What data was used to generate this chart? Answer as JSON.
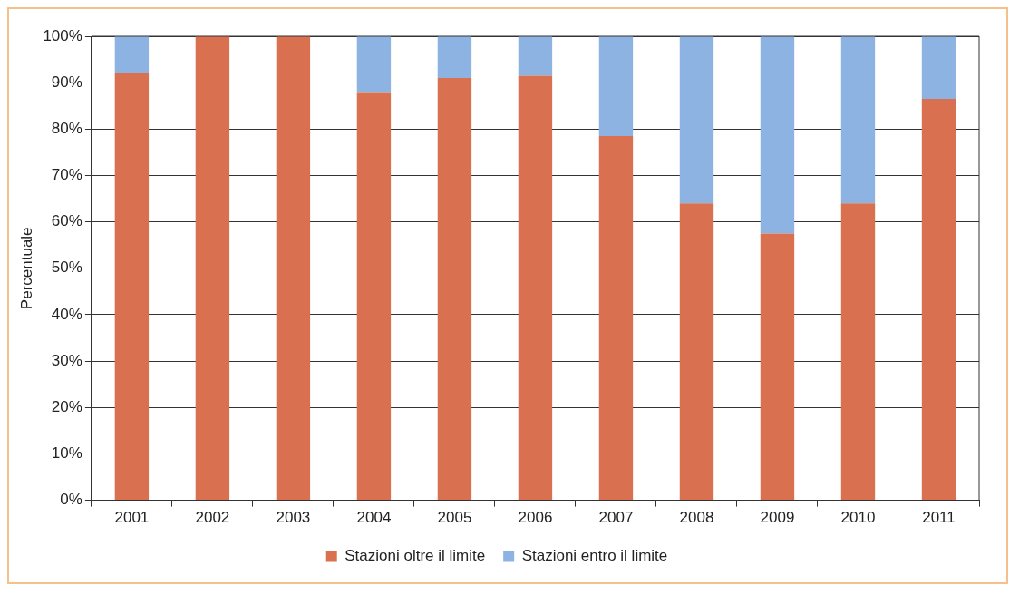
{
  "chart_data": {
    "type": "bar",
    "ylabel": "Percentuale",
    "categories": [
      "2001",
      "2002",
      "2003",
      "2004",
      "2005",
      "2006",
      "2007",
      "2008",
      "2009",
      "2010",
      "2011"
    ],
    "stacked": true,
    "series": [
      {
        "name": "Stazioni oltre il limite",
        "color": "#d9704f",
        "values": [
          92,
          100,
          100,
          88,
          91,
          91.5,
          78.5,
          64,
          57.5,
          64,
          86.5
        ]
      },
      {
        "name": "Stazioni entro il limite",
        "color": "#8db3e2",
        "values": [
          8,
          0,
          0,
          12,
          9,
          8.5,
          21.5,
          36,
          42.5,
          36,
          13.5
        ]
      }
    ],
    "ylim": [
      0,
      100
    ],
    "yticks": [
      {
        "value": 0,
        "label": "0%"
      },
      {
        "value": 10,
        "label": "10%"
      },
      {
        "value": 20,
        "label": "20%"
      },
      {
        "value": 30,
        "label": "30%"
      },
      {
        "value": 40,
        "label": "40%"
      },
      {
        "value": 50,
        "label": "50%"
      },
      {
        "value": 60,
        "label": "60%"
      },
      {
        "value": 70,
        "label": "70%"
      },
      {
        "value": 80,
        "label": "80%"
      },
      {
        "value": 90,
        "label": "90%"
      },
      {
        "value": 100,
        "label": "100%"
      }
    ],
    "grid": "y",
    "legend": "bottom"
  }
}
